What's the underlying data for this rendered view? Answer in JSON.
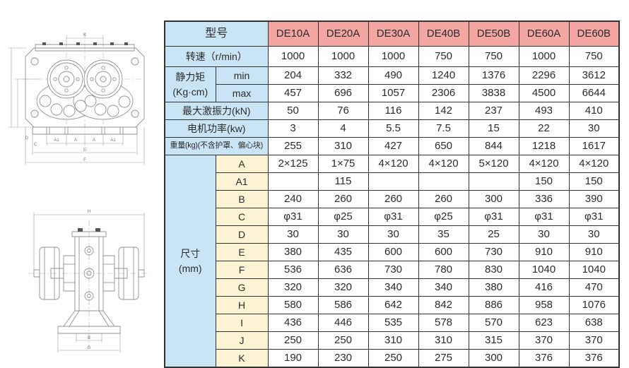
{
  "colors": {
    "header_pink": "#f3a6a2",
    "label_blue": "#c9e5f5",
    "sub_cream": "#fcf3d4",
    "border": "#333333",
    "line_gray": "#8d9298"
  },
  "table": {
    "corner_label": "型号",
    "models": [
      "DE10A",
      "DE20A",
      "DE30A",
      "DE40B",
      "DE50B",
      "DE60A",
      "DE60B"
    ],
    "rows": [
      {
        "kind": "full",
        "tall": true,
        "label": "转速（r/min）",
        "values": [
          "1000",
          "1000",
          "1000",
          "750",
          "750",
          "1000",
          "750"
        ]
      },
      {
        "kind": "group",
        "span": 2,
        "group_lines": [
          "静力矩",
          "(Kg·cm)"
        ],
        "sub": "min",
        "sub_bg": "blue",
        "values": [
          "204",
          "332",
          "490",
          "1240",
          "1376",
          "2296",
          "3612"
        ]
      },
      {
        "kind": "cont",
        "sub": "max",
        "sub_bg": "blue",
        "values": [
          "457",
          "696",
          "1057",
          "2306",
          "3838",
          "4500",
          "6644"
        ]
      },
      {
        "kind": "full",
        "label": "最大激振力(kN)",
        "values": [
          "50",
          "76",
          "116",
          "142",
          "237",
          "493",
          "410"
        ]
      },
      {
        "kind": "full",
        "label": "电机功率(kw)",
        "values": [
          "3",
          "4",
          "5.5",
          "7.5",
          "15",
          "22",
          "30"
        ]
      },
      {
        "kind": "full",
        "small": true,
        "label": "重量(kg)(不含护罩、偏心块)",
        "values": [
          "255",
          "310",
          "427",
          "650",
          "844",
          "1218",
          "1617"
        ]
      },
      {
        "kind": "group",
        "span": 12,
        "group_lines": [
          "尺寸",
          "(mm)"
        ],
        "sub": "A",
        "sub_bg": "cream",
        "values": [
          "2×125",
          "1×75",
          "4×120",
          "4×120",
          "5×120",
          "4×120",
          "4×120"
        ]
      },
      {
        "kind": "cont",
        "sub": "A1",
        "sub_bg": "cream",
        "values": [
          "",
          "115",
          "",
          "",
          "",
          "150",
          "150"
        ]
      },
      {
        "kind": "cont",
        "sub": "B",
        "sub_bg": "cream",
        "values": [
          "240",
          "260",
          "260",
          "260",
          "300",
          "336",
          "390"
        ]
      },
      {
        "kind": "cont",
        "sub": "C",
        "sub_bg": "cream",
        "values": [
          "φ31",
          "φ25",
          "φ31",
          "φ25",
          "φ31",
          "φ31",
          "φ31"
        ]
      },
      {
        "kind": "cont",
        "sub": "D",
        "sub_bg": "cream",
        "values": [
          "30",
          "30",
          "30",
          "35",
          "25",
          "30",
          "30"
        ]
      },
      {
        "kind": "cont",
        "sub": "E",
        "sub_bg": "cream",
        "values": [
          "380",
          "435",
          "600",
          "600",
          "730",
          "910",
          "910"
        ]
      },
      {
        "kind": "cont",
        "sub": "F",
        "sub_bg": "cream",
        "values": [
          "536",
          "636",
          "730",
          "780",
          "830",
          "1040",
          "1040"
        ]
      },
      {
        "kind": "cont",
        "sub": "G",
        "sub_bg": "cream",
        "values": [
          "320",
          "320",
          "340",
          "340",
          "380",
          "416",
          "470"
        ]
      },
      {
        "kind": "cont",
        "sub": "H",
        "sub_bg": "cream",
        "values": [
          "580",
          "586",
          "642",
          "842",
          "886",
          "958",
          "1076"
        ]
      },
      {
        "kind": "cont",
        "sub": "I",
        "sub_bg": "cream",
        "values": [
          "436",
          "446",
          "535",
          "578",
          "570",
          "623",
          "638"
        ]
      },
      {
        "kind": "cont",
        "sub": "J",
        "sub_bg": "cream",
        "values": [
          "250",
          "250",
          "310",
          "310",
          "315",
          "370",
          "370"
        ]
      },
      {
        "kind": "cont",
        "sub": "K",
        "sub_bg": "cream",
        "values": [
          "190",
          "230",
          "250",
          "275",
          "300",
          "376",
          "376"
        ]
      }
    ]
  },
  "drawings": {
    "top": {
      "dims": {
        "k": "K",
        "a1_l": "A1",
        "a_l": "A",
        "a_r": "A",
        "a1_r": "A1",
        "e": "E",
        "f": "F",
        "d": "D",
        "c": "C"
      }
    },
    "bottom": {
      "dims": {
        "h": "H",
        "b": "B",
        "g": "G"
      }
    }
  }
}
